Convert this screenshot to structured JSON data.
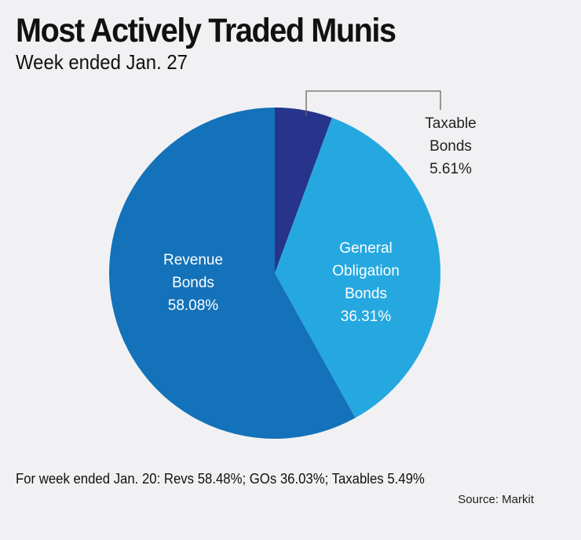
{
  "title": "Most Actively Traded Munis",
  "subtitle": "Week ended Jan. 27",
  "footnote": "For week ended Jan. 20: Revs 58.48%; GOs 36.03%; Taxables 5.49%",
  "source": "Source: Markit",
  "chart_data": {
    "type": "pie",
    "title": "Most Actively Traded Munis",
    "subtitle": "Week ended Jan. 27",
    "slices": [
      {
        "label_lines": [
          "Taxable",
          "Bonds"
        ],
        "value": 5.61,
        "value_label": "5.61%",
        "color": "#27348b",
        "label_color": "#222222",
        "label_outside": true
      },
      {
        "label_lines": [
          "General",
          "Obligation",
          "Bonds"
        ],
        "value": 36.31,
        "value_label": "36.31%",
        "color": "#25a8e0",
        "label_color": "#ffffff",
        "label_outside": false
      },
      {
        "label_lines": [
          "Revenue",
          "Bonds"
        ],
        "value": 58.08,
        "value_label": "58.08%",
        "color": "#1372b9",
        "label_color": "#ffffff",
        "label_outside": false
      }
    ]
  }
}
